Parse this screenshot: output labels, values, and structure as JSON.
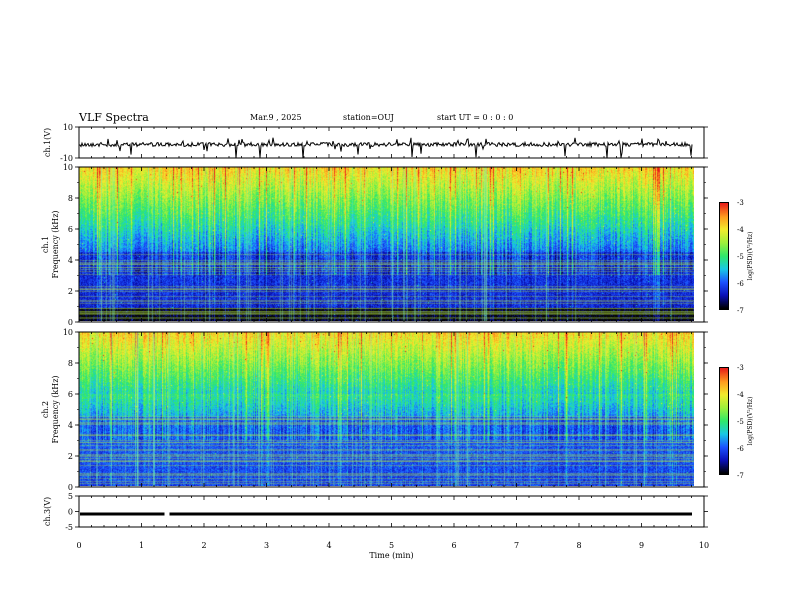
{
  "header": {
    "title": "VLF Spectra",
    "date": "Mar.9 , 2025",
    "station": "station=OUJ",
    "start": "start UT = 0 : 0 : 0"
  },
  "colors": {
    "axis": "#000000",
    "colormap": [
      "#000000",
      "#0a10b8",
      "#1c52ff",
      "#19c8e6",
      "#2fe86a",
      "#9ef03c",
      "#f2ec2e",
      "#ff9a1e",
      "#e8201a",
      "#ffffff"
    ]
  },
  "chart_data": [
    {
      "id": "ch1-waveform",
      "type": "line",
      "ylabel": "ch.1(V)",
      "ylim": [
        -10,
        10
      ],
      "yticks": [
        "10",
        "-10"
      ],
      "xlim": [
        0,
        10
      ],
      "baseline": 0,
      "description_series": "voltage trace near 0 V with sparse downward spikes"
    },
    {
      "id": "ch1-spectrogram",
      "type": "heatmap",
      "ylabel": "Frequency (kHz)",
      "channel_label": "ch.1",
      "ylim": [
        0,
        10
      ],
      "yticks": [
        "0",
        "2",
        "4",
        "6",
        "8",
        "10"
      ],
      "xlim": [
        0,
        10
      ],
      "colorbar": {
        "label": "log(PSD)(V²/Hz)",
        "range": [
          -7,
          -3
        ],
        "ticks": [
          "-3",
          "-4",
          "-5",
          "-6",
          "-7"
        ]
      }
    },
    {
      "id": "ch2-spectrogram",
      "type": "heatmap",
      "ylabel": "Frequency (kHz)",
      "channel_label": "ch.2",
      "ylim": [
        0,
        10
      ],
      "yticks": [
        "0",
        "2",
        "4",
        "6",
        "8",
        "10"
      ],
      "xlim": [
        0,
        10
      ],
      "colorbar": {
        "label": "log(PSD)(V²/Hz)",
        "range": [
          -7,
          -3
        ],
        "ticks": [
          "-3",
          "-4",
          "-5",
          "-6",
          "-7"
        ]
      }
    },
    {
      "id": "ch3-waveform",
      "type": "line",
      "ylabel": "ch.3(V)",
      "ylim": [
        -5,
        5
      ],
      "yticks": [
        "5",
        "0",
        "-5"
      ],
      "xlim": [
        0,
        10
      ],
      "level": -0.8,
      "gap_at": 1.4
    }
  ],
  "xaxis": {
    "label": "Time (min)",
    "ticks": [
      "0",
      "1",
      "2",
      "3",
      "4",
      "5",
      "6",
      "7",
      "8",
      "9",
      "10"
    ],
    "min": 0,
    "max": 10
  }
}
